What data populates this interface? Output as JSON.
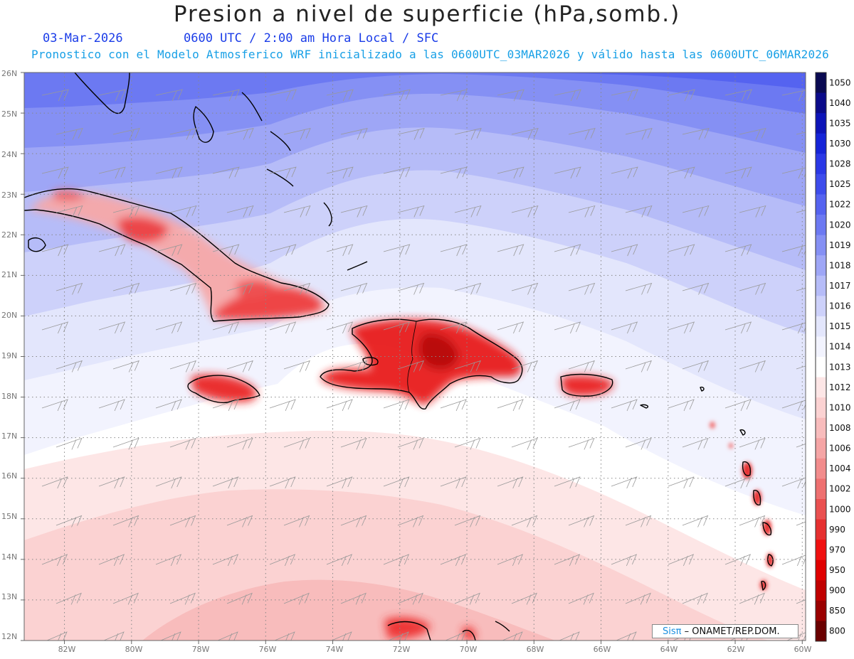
{
  "header": {
    "title": "Presion a nivel de superficie (hPa,somb.)",
    "date": "03-Mar-2026",
    "time": "0600 UTC / 2:00 am Hora Local / SFC",
    "subtitle": "Pronostico con el Modelo Atmosferico WRF inicializado a las 0600UTC_03MAR2026 y válido hasta las  0600UTC_06MAR2026"
  },
  "map": {
    "lat_labels": [
      "26N",
      "25N",
      "24N",
      "23N",
      "22N",
      "21N",
      "20N",
      "19N",
      "18N",
      "17N",
      "16N",
      "15N",
      "14N",
      "13N",
      "12N"
    ],
    "lon_labels": [
      "82W",
      "80W",
      "78W",
      "76W",
      "74W",
      "72W",
      "70W",
      "68W",
      "66W",
      "64W",
      "62W",
      "60W"
    ],
    "lat_range": [
      12,
      26
    ],
    "lon_range": [
      -83.2,
      -59.9
    ],
    "gridlines": "dotted",
    "wind_barbs": true
  },
  "colorbar": {
    "levels": [
      "1050",
      "1040",
      "1035",
      "1030",
      "1028",
      "1025",
      "1022",
      "1020",
      "1019",
      "1018",
      "1017",
      "1016",
      "1015",
      "1014",
      "1013",
      "1012",
      "1010",
      "1008",
      "1006",
      "1004",
      "1002",
      "1000",
      "990",
      "970",
      "950",
      "900",
      "850",
      "800"
    ],
    "colors": [
      "#0a0a52",
      "#0b0b8a",
      "#0d14b8",
      "#1524d8",
      "#2a38e6",
      "#3d4cec",
      "#5563f0",
      "#6c79f2",
      "#8590f4",
      "#9ea6f6",
      "#b6bcf8",
      "#cdd1fa",
      "#e3e6fc",
      "#f2f3fe",
      "#ffffff",
      "#fde6e6",
      "#fbd2d2",
      "#f8bcbc",
      "#f5a5a5",
      "#f28c8c",
      "#ee7070",
      "#ea5050",
      "#e63030",
      "#f01010",
      "#e00000",
      "#c00000",
      "#9a0000",
      "#6a0000"
    ]
  },
  "credit": {
    "logo": "Sisπ",
    "text": " – ONAMET/REP.DOM."
  }
}
